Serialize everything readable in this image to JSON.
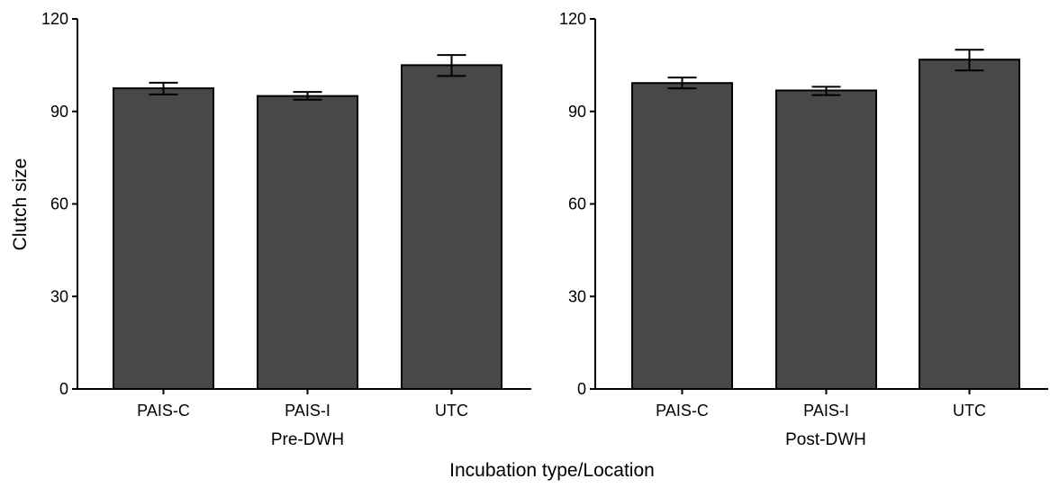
{
  "colors": {
    "bar_fill": "#484848",
    "bar_stroke": "#000000",
    "axis": "#000000",
    "background": "#ffffff"
  },
  "chart_data": {
    "type": "bar",
    "ylabel": "Clutch size",
    "xlabel": "Incubation type/Location",
    "ylim": [
      0,
      120
    ],
    "yticks": [
      "0",
      "30",
      "60",
      "90",
      "120"
    ],
    "grid": false,
    "panels": [
      {
        "label": "Pre-DWH",
        "categories": [
          "PAIS-C",
          "PAIS-I",
          "UTC"
        ],
        "values": [
          97.5,
          95,
          105
        ],
        "error_low": [
          95.5,
          93.8,
          101.5
        ],
        "error_high": [
          99.3,
          96.3,
          108.3
        ]
      },
      {
        "label": "Post-DWH",
        "categories": [
          "PAIS-C",
          "PAIS-I",
          "UTC"
        ],
        "values": [
          99.2,
          96.8,
          106.8
        ],
        "error_low": [
          97.5,
          95.3,
          103.3
        ],
        "error_high": [
          101,
          98,
          110
        ]
      }
    ]
  }
}
